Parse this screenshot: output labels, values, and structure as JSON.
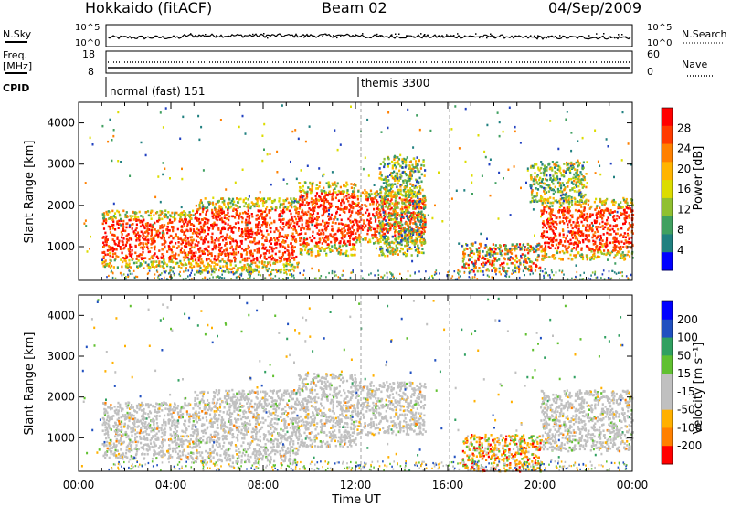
{
  "header": {
    "station": "Hokkaido (fitACF)",
    "beam": "Beam 02",
    "date": "04/Sep/2009"
  },
  "strip": {
    "nsky_label": "N.Sky",
    "nsky_ticks": [
      "10^5",
      "10^0"
    ],
    "nsearch_label": "N.Search",
    "nsearch_ticks": [
      "10^5",
      "10^0"
    ],
    "freq_label": "Freq.",
    "freq_unit": "[MHz]",
    "freq_ticks": [
      "18",
      "8"
    ],
    "nave_label": "Nave",
    "nave_ticks": [
      "60",
      "0"
    ],
    "cpid_label": "CPID",
    "cpid_segments": [
      {
        "label": "normal (fast) 151",
        "start_hour": 1.0,
        "end_hour": 12.0
      },
      {
        "label": "themis 3300",
        "start_hour": 12.0,
        "end_hour": 24.0
      }
    ]
  },
  "chart_data": [
    {
      "type": "heatmap",
      "name": "power",
      "ylabel": "Slant Range [km]",
      "xlabel": "Time UT",
      "xlim_hours": [
        0,
        24
      ],
      "ylim": [
        180,
        4500
      ],
      "x_tick_labels": [
        "00:00",
        "04:00",
        "08:00",
        "12:00",
        "16:00",
        "20:00",
        "00:00"
      ],
      "x_tick_hours": [
        0,
        4,
        8,
        12,
        16,
        20,
        24
      ],
      "y_tick_values": [
        1000,
        2000,
        3000,
        4000
      ],
      "y_tick_labels": [
        "1000",
        "2000",
        "3000",
        "4000"
      ],
      "colorbar": {
        "label": "Power [dB]",
        "tick_labels": [
          "28",
          "24",
          "20",
          "16",
          "12",
          "8",
          "4"
        ],
        "colors": [
          "#ff0000",
          "#ff3a00",
          "#ff8000",
          "#ffb400",
          "#dcdc00",
          "#90c030",
          "#40a060",
          "#208080",
          "#0000ff"
        ]
      },
      "regions": [
        {
          "t": [
            1.0,
            5.0
          ],
          "r": [
            500,
            1900
          ],
          "level": "high"
        },
        {
          "t": [
            5.0,
            9.5
          ],
          "r": [
            400,
            2200
          ],
          "level": "high"
        },
        {
          "t": [
            9.5,
            12.0
          ],
          "r": [
            800,
            2600
          ],
          "level": "high"
        },
        {
          "t": [
            12.0,
            15.0
          ],
          "r": [
            1100,
            2400
          ],
          "level": "high"
        },
        {
          "t": [
            13.0,
            15.0
          ],
          "r": [
            800,
            3200
          ],
          "level": "mid"
        },
        {
          "t": [
            16.6,
            20.0
          ],
          "r": [
            400,
            1100
          ],
          "level": "mixed"
        },
        {
          "t": [
            20.0,
            24.0
          ],
          "r": [
            700,
            2200
          ],
          "level": "high"
        },
        {
          "t": [
            19.5,
            22.0
          ],
          "r": [
            2100,
            3100
          ],
          "level": "mid"
        }
      ]
    },
    {
      "type": "heatmap",
      "name": "velocity",
      "ylabel": "Slant Range [km]",
      "xlabel": "Time UT",
      "xlim_hours": [
        0,
        24
      ],
      "ylim": [
        180,
        4500
      ],
      "y_tick_values": [
        1000,
        2000,
        3000,
        4000
      ],
      "y_tick_labels": [
        "1000",
        "2000",
        "3000",
        "4000"
      ],
      "colorbar": {
        "label": "Velocity [m s⁻¹]",
        "tick_labels": [
          "200",
          "100",
          "50",
          "15",
          "-15",
          "-50",
          "-100",
          "-200"
        ],
        "colors": [
          "#0000ff",
          "#2050c0",
          "#30a060",
          "#60c030",
          "#c0c0c0",
          "#c0c0c0",
          "#ffb000",
          "#ff8000",
          "#ff0000"
        ]
      },
      "regions": [
        {
          "t": [
            1.0,
            5.0
          ],
          "r": [
            500,
            1900
          ],
          "level": "ground"
        },
        {
          "t": [
            5.0,
            9.5
          ],
          "r": [
            400,
            2200
          ],
          "level": "ground"
        },
        {
          "t": [
            9.5,
            12.0
          ],
          "r": [
            800,
            2600
          ],
          "level": "ground"
        },
        {
          "t": [
            12.0,
            15.0
          ],
          "r": [
            1100,
            2400
          ],
          "level": "ground"
        },
        {
          "t": [
            16.6,
            20.0
          ],
          "r": [
            200,
            1100
          ],
          "level": "negative"
        },
        {
          "t": [
            20.0,
            24.0
          ],
          "r": [
            700,
            2200
          ],
          "level": "ground"
        }
      ]
    }
  ],
  "colors": {
    "dashed_line": "#a0a0a0",
    "axis": "#000000"
  }
}
